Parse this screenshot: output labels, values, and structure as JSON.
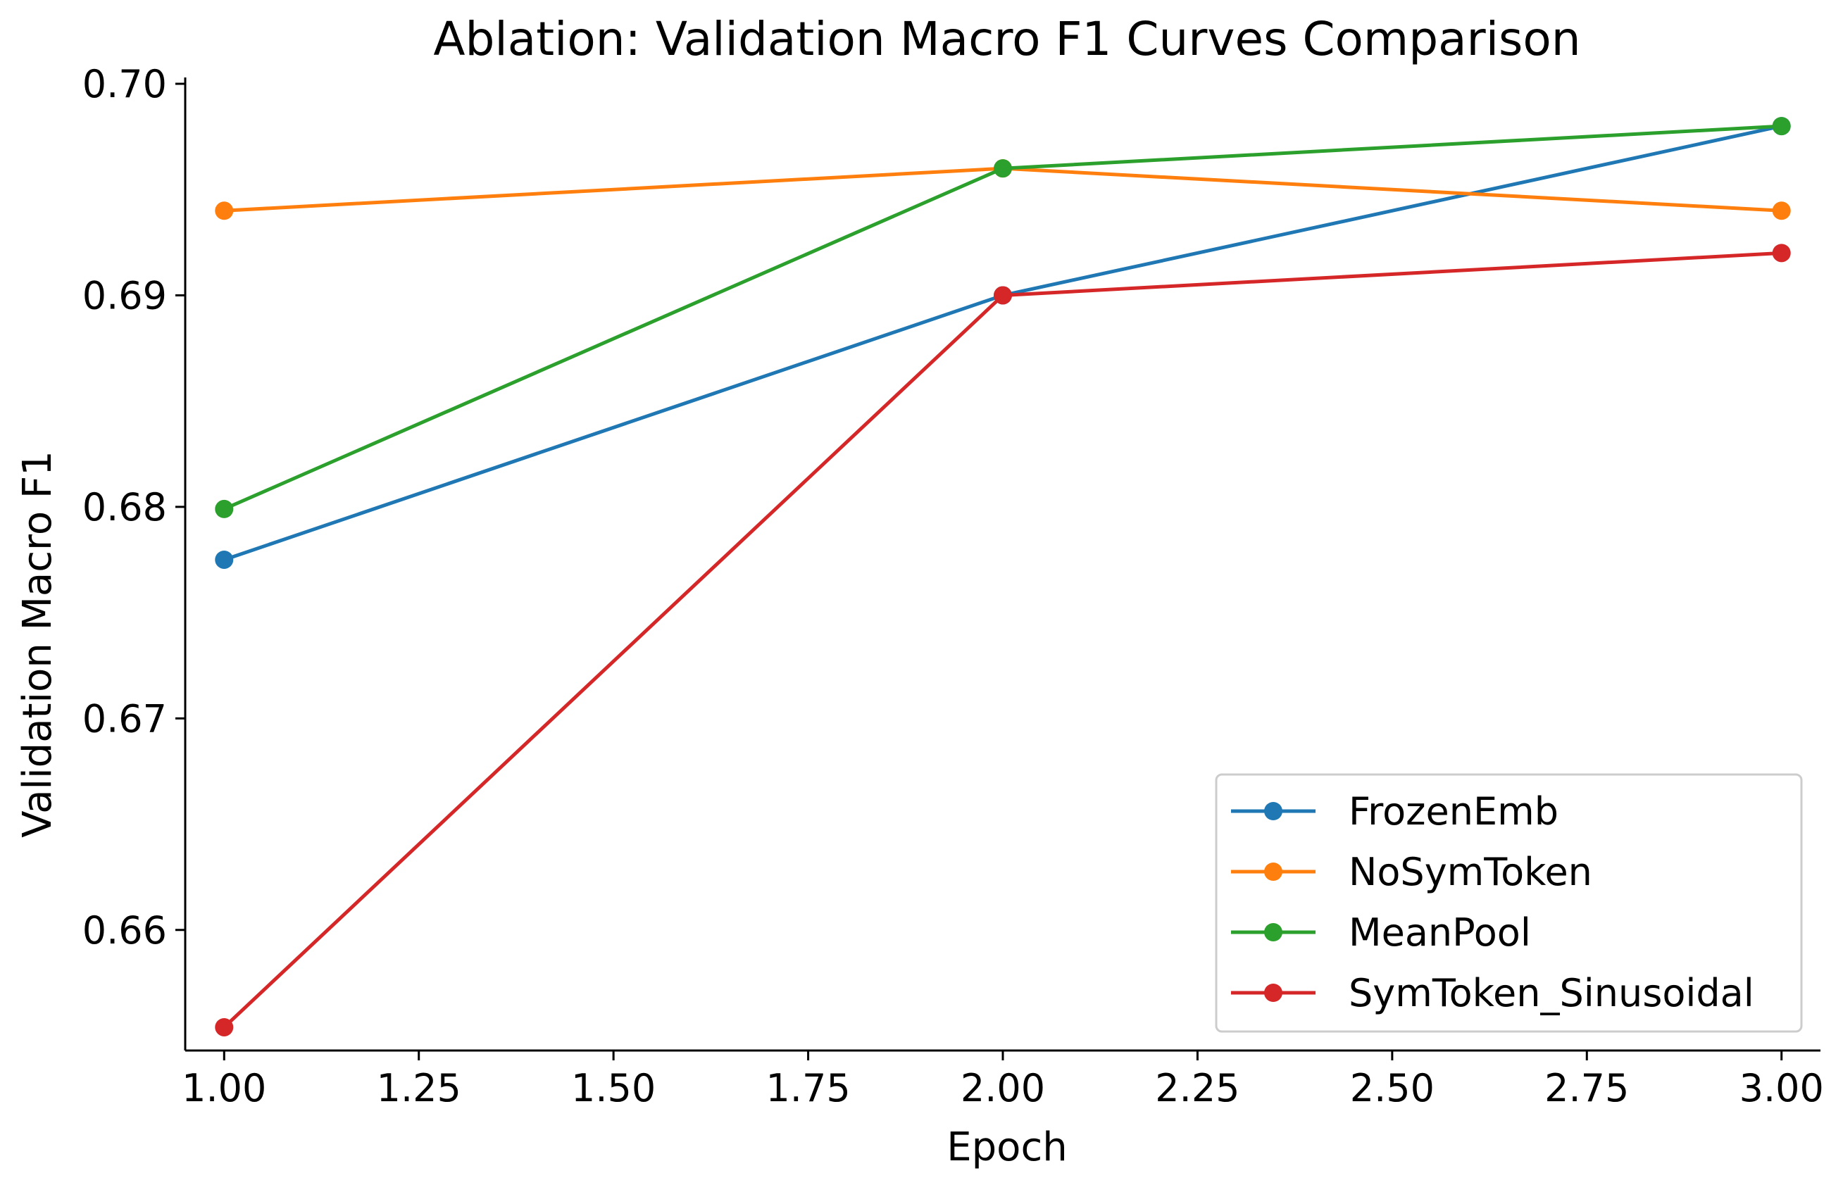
{
  "chart_data": {
    "type": "line",
    "title": "Ablation: Validation Macro F1 Curves Comparison",
    "xlabel": "Epoch",
    "ylabel": "Validation Macro F1",
    "xlim": [
      0.95,
      3.05
    ],
    "ylim": [
      0.6543,
      0.7003
    ],
    "x_ticks": [
      1.0,
      1.25,
      1.5,
      1.75,
      2.0,
      2.25,
      2.5,
      2.75,
      3.0
    ],
    "x_tick_labels": [
      "1.00",
      "1.25",
      "1.50",
      "1.75",
      "2.00",
      "2.25",
      "2.50",
      "2.75",
      "3.00"
    ],
    "y_ticks": [
      0.66,
      0.67,
      0.68,
      0.69,
      0.7
    ],
    "y_tick_labels": [
      "0.66",
      "0.67",
      "0.68",
      "0.69",
      "0.70"
    ],
    "grid": false,
    "legend_position": "lower-right",
    "x": [
      1,
      2,
      3
    ],
    "series": [
      {
        "name": "FrozenEmb",
        "color": "#1f77b4",
        "values": [
          0.6775,
          0.69,
          0.698
        ]
      },
      {
        "name": "NoSymToken",
        "color": "#ff7f0e",
        "values": [
          0.694,
          0.696,
          0.694
        ]
      },
      {
        "name": "MeanPool",
        "color": "#2ca02c",
        "values": [
          0.6799,
          0.696,
          0.698
        ]
      },
      {
        "name": "SymToken_Sinusoidal",
        "color": "#d62728",
        "values": [
          0.6554,
          0.69,
          0.692
        ]
      }
    ]
  }
}
